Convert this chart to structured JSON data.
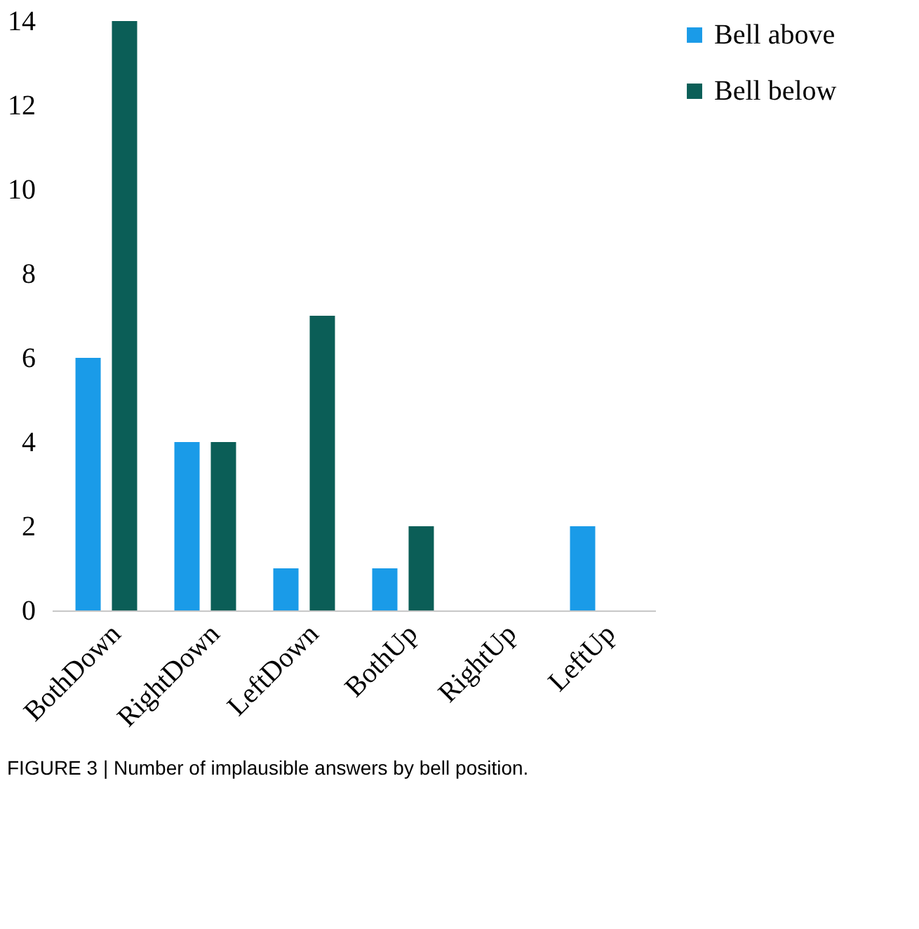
{
  "chart_data": {
    "type": "bar",
    "categories": [
      "BothDown",
      "RightDown",
      "LeftDown",
      "BothUp",
      "RightUp",
      "LeftUp"
    ],
    "series": [
      {
        "name": "Bell above",
        "color": "#1a9be8",
        "values": [
          6,
          4,
          1,
          1,
          0,
          2
        ]
      },
      {
        "name": "Bell below",
        "color": "#0b5e57",
        "values": [
          14,
          4,
          7,
          2,
          0,
          0
        ]
      }
    ],
    "ylim": [
      0,
      14
    ],
    "yticks": [
      0,
      2,
      4,
      6,
      8,
      10,
      12,
      14
    ],
    "grid": false,
    "legend": "right",
    "annotations": [
      "FIGURE 3 | Number of implausible answers by bell position."
    ]
  }
}
